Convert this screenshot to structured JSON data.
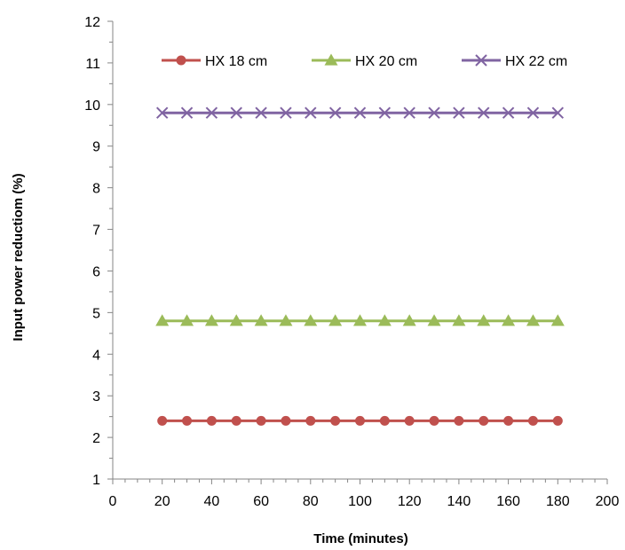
{
  "chart_data": {
    "type": "line",
    "title": "",
    "xlabel": "Time (minutes)",
    "ylabel": "Input power reductiom (%)",
    "xlim": [
      0,
      200
    ],
    "ylim": [
      1,
      12
    ],
    "x_ticks": [
      "0",
      "20",
      "40",
      "60",
      "80",
      "100",
      "120",
      "140",
      "160",
      "180",
      "200"
    ],
    "y_ticks": [
      "1",
      "2",
      "3",
      "4",
      "5",
      "6",
      "7",
      "8",
      "9",
      "10",
      "11",
      "12"
    ],
    "x": [
      20,
      30,
      40,
      50,
      60,
      70,
      80,
      90,
      100,
      110,
      120,
      130,
      140,
      150,
      160,
      170,
      180
    ],
    "series": [
      {
        "name": "HX 18 cm",
        "color": "#C0504D",
        "marker": "circle",
        "values": [
          2.4,
          2.4,
          2.4,
          2.4,
          2.4,
          2.4,
          2.4,
          2.4,
          2.4,
          2.4,
          2.4,
          2.4,
          2.4,
          2.4,
          2.4,
          2.4,
          2.4
        ]
      },
      {
        "name": "HX 20 cm",
        "color": "#9BBB59",
        "marker": "triangle",
        "values": [
          4.8,
          4.8,
          4.8,
          4.8,
          4.8,
          4.8,
          4.8,
          4.8,
          4.8,
          4.8,
          4.8,
          4.8,
          4.8,
          4.8,
          4.8,
          4.8,
          4.8
        ]
      },
      {
        "name": "HX 22 cm",
        "color": "#8064A2",
        "marker": "x",
        "values": [
          9.8,
          9.8,
          9.8,
          9.8,
          9.8,
          9.8,
          9.8,
          9.8,
          9.8,
          9.8,
          9.8,
          9.8,
          9.8,
          9.8,
          9.8,
          9.8,
          9.8
        ]
      }
    ],
    "legend_position": "top",
    "grid": false
  }
}
